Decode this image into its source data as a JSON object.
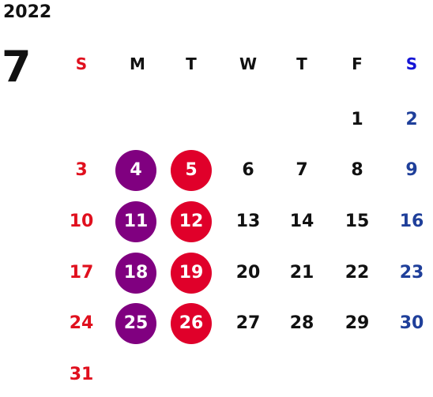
{
  "calendar": {
    "year": "2022",
    "month": "7",
    "weekdays": [
      "S",
      "M",
      "T",
      "W",
      "T",
      "F",
      "S"
    ],
    "days": [
      "1",
      "2",
      "3",
      "4",
      "5",
      "6",
      "7",
      "8",
      "9",
      "10",
      "11",
      "12",
      "13",
      "14",
      "15",
      "16",
      "17",
      "18",
      "19",
      "20",
      "21",
      "22",
      "23",
      "24",
      "25",
      "26",
      "27",
      "28",
      "29",
      "30",
      "31"
    ],
    "highlight_colors": {
      "monday": "#800080",
      "tuesday": "#e0002a",
      "sunday_text": "#e0101e",
      "saturday_text": "#1f3f9a"
    }
  }
}
